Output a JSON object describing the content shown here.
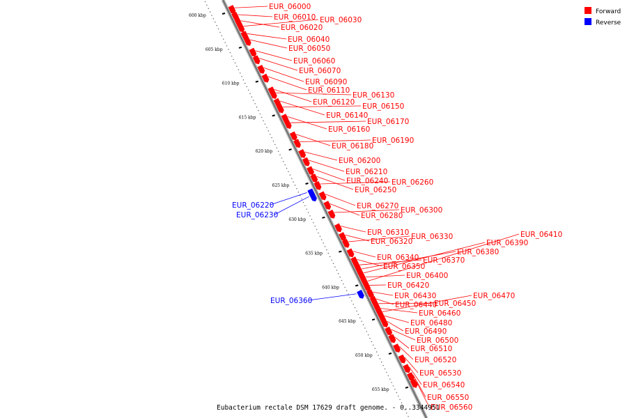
{
  "title": "Eubacterium rectale DSM 17629 draft genome. - 0..3344951",
  "legend": [
    {
      "label": "Forward",
      "color": "#ff0000"
    },
    {
      "label": "Reverse",
      "color": "#0000ff"
    }
  ],
  "scale": {
    "ticks": [
      "600 kbp",
      "605 kbp",
      "610 kbp",
      "615 kbp",
      "620 kbp",
      "625 kbp",
      "630 kbp",
      "635 kbp",
      "640 kbp",
      "645 kbp",
      "650 kbp",
      "655 kbp"
    ]
  },
  "colors": {
    "forward": "#ff0000",
    "reverse": "#0000ff",
    "backbone": "#808080"
  },
  "forward_genes": [
    {
      "name": "EUR_06000",
      "kbp": 599.6
    },
    {
      "name": "EUR_06010",
      "kbp": 600.6
    },
    {
      "name": "EUR_06020",
      "kbp": 601.5
    },
    {
      "name": "EUR_06030",
      "kbp": 602.3
    },
    {
      "name": "EUR_06040",
      "kbp": 603.4
    },
    {
      "name": "EUR_06050",
      "kbp": 604.3
    },
    {
      "name": "EUR_06060",
      "kbp": 605.9
    },
    {
      "name": "EUR_06070",
      "kbp": 607.0
    },
    {
      "name": "EUR_06090",
      "kbp": 608.4
    },
    {
      "name": "EUR_06110",
      "kbp": 609.7
    },
    {
      "name": "EUR_06120",
      "kbp": 611.6
    },
    {
      "name": "EUR_06130",
      "kbp": 612.1
    },
    {
      "name": "EUR_06140",
      "kbp": 613.3
    },
    {
      "name": "EUR_06150",
      "kbp": 614.2
    },
    {
      "name": "EUR_06160",
      "kbp": 615.6
    },
    {
      "name": "EUR_06170",
      "kbp": 616.5
    },
    {
      "name": "EUR_06180",
      "kbp": 618.2
    },
    {
      "name": "EUR_06190",
      "kbp": 619.3
    },
    {
      "name": "EUR_06200",
      "kbp": 620.8
    },
    {
      "name": "EUR_06210",
      "kbp": 622.0
    },
    {
      "name": "EUR_06240",
      "kbp": 623.3
    },
    {
      "name": "EUR_06250",
      "kbp": 624.4
    },
    {
      "name": "EUR_06260",
      "kbp": 625.5
    },
    {
      "name": "EUR_06270",
      "kbp": 627.0
    },
    {
      "name": "EUR_06280",
      "kbp": 628.4
    },
    {
      "name": "EUR_06300",
      "kbp": 629.7
    },
    {
      "name": "EUR_06310",
      "kbp": 631.7
    },
    {
      "name": "EUR_06320",
      "kbp": 633.0
    },
    {
      "name": "EUR_06330",
      "kbp": 634.0
    },
    {
      "name": "EUR_06340",
      "kbp": 635.4
    },
    {
      "name": "EUR_06350",
      "kbp": 636.6
    },
    {
      "name": "EUR_06370",
      "kbp": 637.4
    },
    {
      "name": "EUR_06380",
      "kbp": 638.0
    },
    {
      "name": "EUR_06390",
      "kbp": 638.6
    },
    {
      "name": "EUR_06400",
      "kbp": 639.2
    },
    {
      "name": "EUR_06410",
      "kbp": 639.8
    },
    {
      "name": "EUR_06420",
      "kbp": 640.4
    },
    {
      "name": "EUR_06430",
      "kbp": 641.4
    },
    {
      "name": "EUR_06440",
      "kbp": 642.4
    },
    {
      "name": "EUR_06450",
      "kbp": 643.1
    },
    {
      "name": "EUR_06460",
      "kbp": 643.8
    },
    {
      "name": "EUR_06470",
      "kbp": 644.3
    },
    {
      "name": "EUR_06480",
      "kbp": 644.9
    },
    {
      "name": "EUR_06490",
      "kbp": 645.7
    },
    {
      "name": "EUR_06500",
      "kbp": 646.9
    },
    {
      "name": "EUR_06510",
      "kbp": 648.0
    },
    {
      "name": "EUR_06520",
      "kbp": 649.4
    },
    {
      "name": "EUR_06530",
      "kbp": 651.0
    },
    {
      "name": "EUR_06540",
      "kbp": 652.4
    },
    {
      "name": "EUR_06550",
      "kbp": 653.6
    },
    {
      "name": "EUR_06560",
      "kbp": 654.6
    }
  ],
  "reverse_genes": [
    {
      "name": "EUR_06220",
      "kbp": 626.0
    },
    {
      "name": "EUR_06230",
      "kbp": 626.6
    },
    {
      "name": "EUR_06360",
      "kbp": 640.9
    }
  ]
}
